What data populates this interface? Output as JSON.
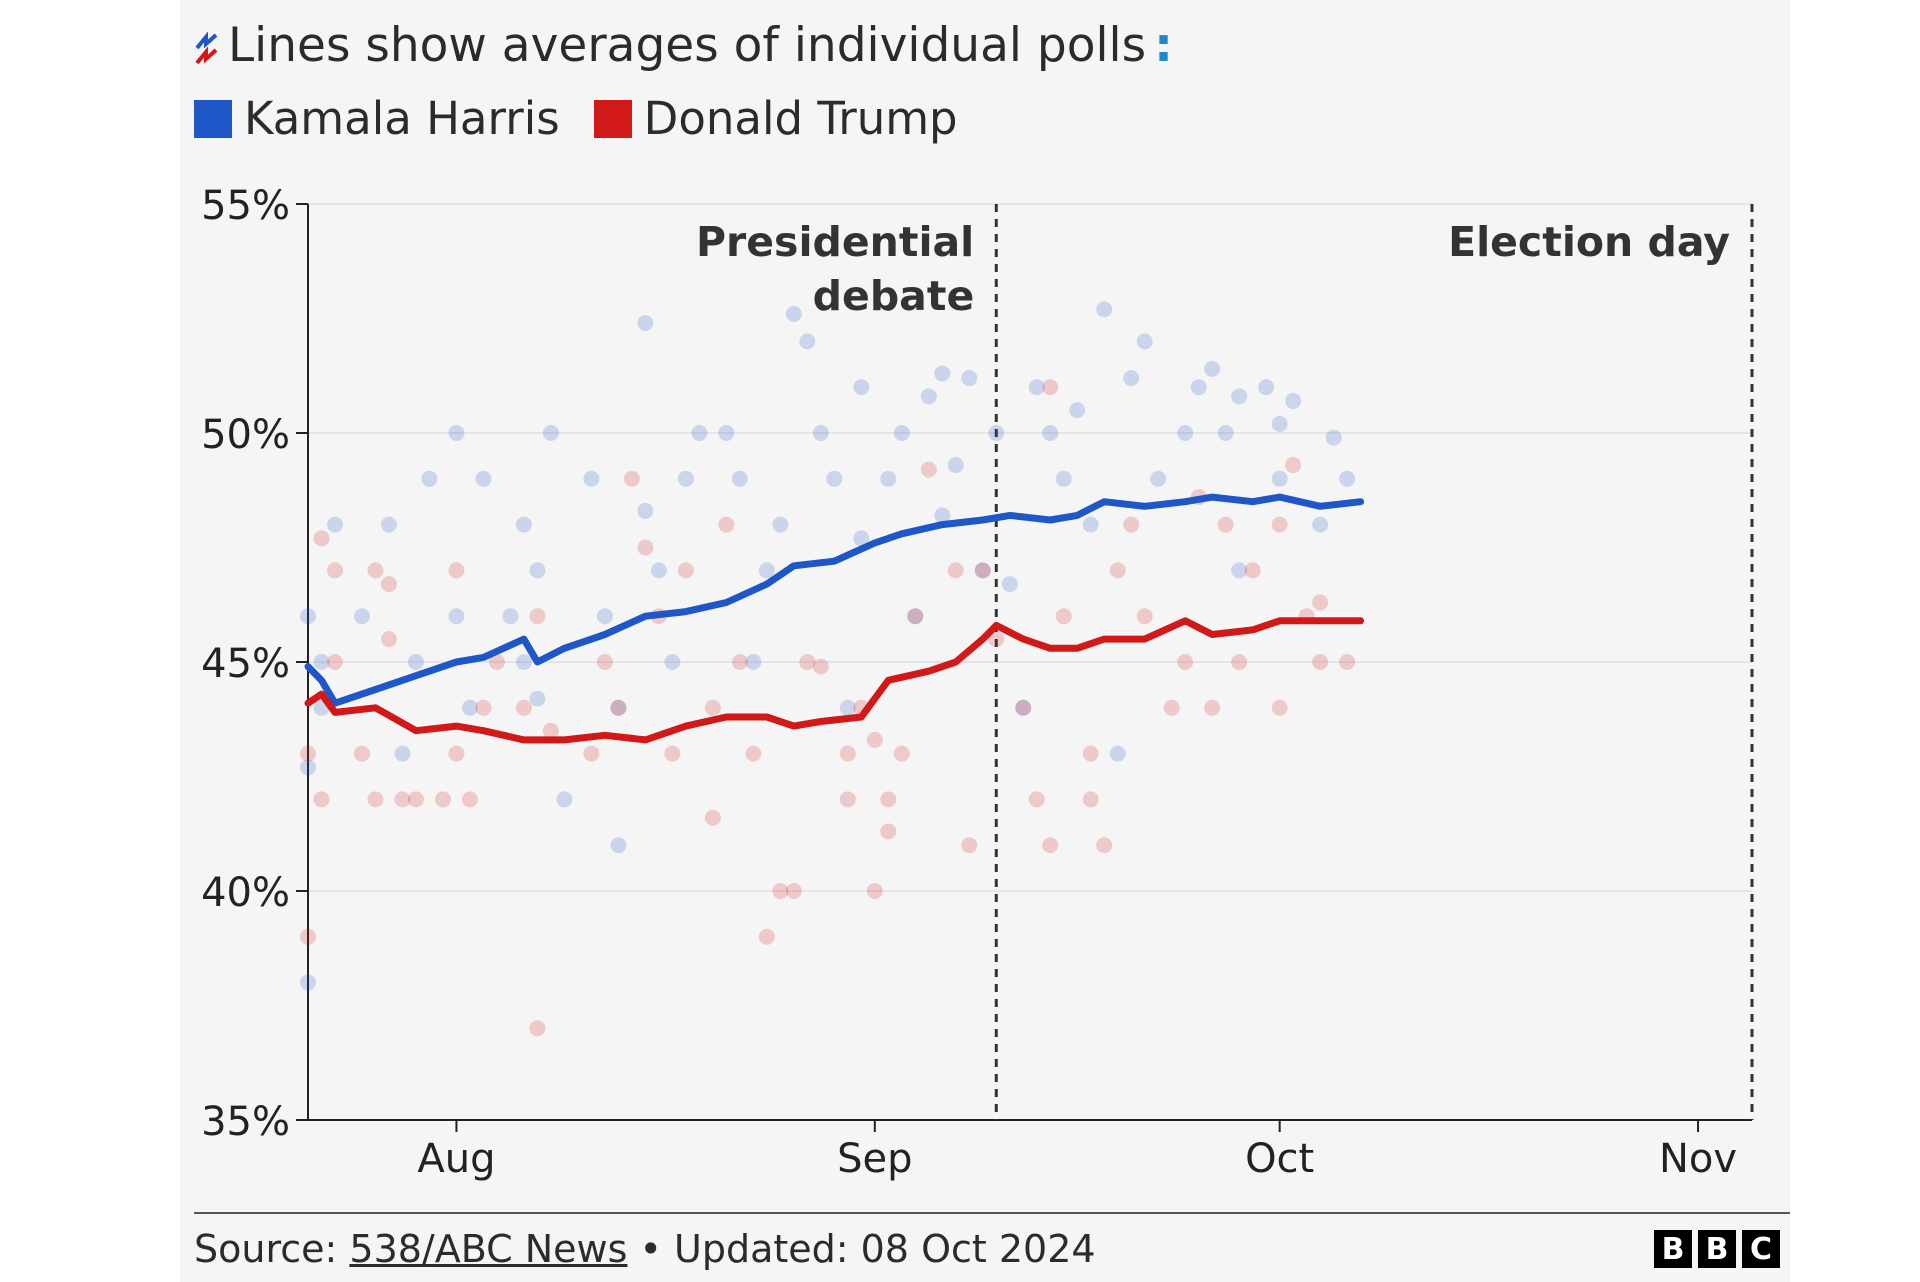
{
  "header": {
    "title": "Lines show averages of individual polls",
    "title_suffix": ":",
    "legend": [
      {
        "label": "Kamala Harris",
        "color": "#1f57c8"
      },
      {
        "label": "Donald Trump",
        "color": "#d11919"
      }
    ]
  },
  "annotations": {
    "debate_line1": "Presidential",
    "debate_line2": "debate",
    "election": "Election day"
  },
  "footer": {
    "source_label": "Source: ",
    "source_name": "538/ABC News",
    "updated": " • Updated: 08 Oct 2024",
    "logo": [
      "B",
      "B",
      "C"
    ]
  },
  "chart_data": {
    "type": "line",
    "xlabel": "",
    "ylabel": "",
    "x_range": [
      "2024-07-21",
      "2024-11-05"
    ],
    "ylim": [
      35,
      55
    ],
    "y_ticks": [
      35,
      40,
      45,
      50,
      55
    ],
    "y_tick_labels": [
      "35%",
      "40%",
      "45%",
      "50%",
      "55%"
    ],
    "x_ticks": [
      {
        "label": "Aug",
        "date": "2024-08-01"
      },
      {
        "label": "Sep",
        "date": "2024-09-01"
      },
      {
        "label": "Oct",
        "date": "2024-10-01"
      },
      {
        "label": "Nov",
        "date": "2024-11-01"
      }
    ],
    "vlines": [
      {
        "key": "debate",
        "date": "2024-09-10"
      },
      {
        "key": "election",
        "date": "2024-11-05"
      }
    ],
    "grid": true,
    "series": [
      {
        "name": "Kamala Harris",
        "color": "#1f57c8",
        "average": [
          [
            "2024-07-21",
            44.9
          ],
          [
            "2024-07-22",
            44.6
          ],
          [
            "2024-07-23",
            44.1
          ],
          [
            "2024-07-26",
            44.4
          ],
          [
            "2024-07-29",
            44.7
          ],
          [
            "2024-08-01",
            45.0
          ],
          [
            "2024-08-03",
            45.1
          ],
          [
            "2024-08-06",
            45.5
          ],
          [
            "2024-08-07",
            45.0
          ],
          [
            "2024-08-09",
            45.3
          ],
          [
            "2024-08-12",
            45.6
          ],
          [
            "2024-08-15",
            46.0
          ],
          [
            "2024-08-18",
            46.1
          ],
          [
            "2024-08-21",
            46.3
          ],
          [
            "2024-08-24",
            46.7
          ],
          [
            "2024-08-26",
            47.1
          ],
          [
            "2024-08-29",
            47.2
          ],
          [
            "2024-09-01",
            47.6
          ],
          [
            "2024-09-03",
            47.8
          ],
          [
            "2024-09-06",
            48.0
          ],
          [
            "2024-09-09",
            48.1
          ],
          [
            "2024-09-11",
            48.2
          ],
          [
            "2024-09-14",
            48.1
          ],
          [
            "2024-09-16",
            48.2
          ],
          [
            "2024-09-18",
            48.5
          ],
          [
            "2024-09-21",
            48.4
          ],
          [
            "2024-09-24",
            48.5
          ],
          [
            "2024-09-26",
            48.6
          ],
          [
            "2024-09-29",
            48.5
          ],
          [
            "2024-10-01",
            48.6
          ],
          [
            "2024-10-04",
            48.4
          ],
          [
            "2024-10-07",
            48.5
          ]
        ],
        "polls": [
          [
            "2024-07-21",
            46
          ],
          [
            "2024-07-22",
            45
          ],
          [
            "2024-07-22",
            44
          ],
          [
            "2024-07-23",
            48
          ],
          [
            "2024-07-21",
            38
          ],
          [
            "2024-07-21",
            42.7
          ],
          [
            "2024-07-25",
            46
          ],
          [
            "2024-07-27",
            48
          ],
          [
            "2024-07-28",
            43
          ],
          [
            "2024-07-29",
            45
          ],
          [
            "2024-07-30",
            49
          ],
          [
            "2024-08-01",
            50
          ],
          [
            "2024-08-01",
            46
          ],
          [
            "2024-08-02",
            44
          ],
          [
            "2024-08-03",
            49
          ],
          [
            "2024-08-05",
            46
          ],
          [
            "2024-08-06",
            48
          ],
          [
            "2024-08-06",
            45
          ],
          [
            "2024-08-07",
            47
          ],
          [
            "2024-08-07",
            44.2
          ],
          [
            "2024-08-08",
            50
          ],
          [
            "2024-08-09",
            42
          ],
          [
            "2024-08-11",
            49
          ],
          [
            "2024-08-12",
            46
          ],
          [
            "2024-08-13",
            44
          ],
          [
            "2024-08-13",
            41
          ],
          [
            "2024-08-15",
            48.3
          ],
          [
            "2024-08-15",
            52.4
          ],
          [
            "2024-08-16",
            47
          ],
          [
            "2024-08-17",
            45
          ],
          [
            "2024-08-18",
            49
          ],
          [
            "2024-08-19",
            50
          ],
          [
            "2024-08-21",
            50
          ],
          [
            "2024-08-22",
            49
          ],
          [
            "2024-08-23",
            45
          ],
          [
            "2024-08-24",
            47
          ],
          [
            "2024-08-25",
            48
          ],
          [
            "2024-08-26",
            52.6
          ],
          [
            "2024-08-27",
            52
          ],
          [
            "2024-08-28",
            50
          ],
          [
            "2024-08-29",
            49
          ],
          [
            "2024-08-30",
            44
          ],
          [
            "2024-08-31",
            51
          ],
          [
            "2024-08-31",
            47.7
          ],
          [
            "2024-09-02",
            49
          ],
          [
            "2024-09-03",
            50
          ],
          [
            "2024-09-04",
            46
          ],
          [
            "2024-09-05",
            50.8
          ],
          [
            "2024-09-06",
            51.3
          ],
          [
            "2024-09-06",
            48.2
          ],
          [
            "2024-09-07",
            49.3
          ],
          [
            "2024-09-08",
            51.2
          ],
          [
            "2024-09-09",
            47
          ],
          [
            "2024-09-10",
            50
          ],
          [
            "2024-09-11",
            46.7
          ],
          [
            "2024-09-12",
            44
          ],
          [
            "2024-09-13",
            51
          ],
          [
            "2024-09-14",
            50
          ],
          [
            "2024-09-15",
            49
          ],
          [
            "2024-09-16",
            50.5
          ],
          [
            "2024-09-17",
            48
          ],
          [
            "2024-09-18",
            52.7
          ],
          [
            "2024-09-19",
            43
          ],
          [
            "2024-09-20",
            51.2
          ],
          [
            "2024-09-21",
            52
          ],
          [
            "2024-09-22",
            49
          ],
          [
            "2024-09-24",
            50
          ],
          [
            "2024-09-25",
            51
          ],
          [
            "2024-09-26",
            51.4
          ],
          [
            "2024-09-27",
            50
          ],
          [
            "2024-09-28",
            50.8
          ],
          [
            "2024-09-28",
            47
          ],
          [
            "2024-09-30",
            51
          ],
          [
            "2024-10-01",
            50.2
          ],
          [
            "2024-10-01",
            49
          ],
          [
            "2024-10-02",
            50.7
          ],
          [
            "2024-10-04",
            48
          ],
          [
            "2024-10-05",
            49.9
          ],
          [
            "2024-10-06",
            49
          ]
        ]
      },
      {
        "name": "Donald Trump",
        "color": "#d11919",
        "average": [
          [
            "2024-07-21",
            44.1
          ],
          [
            "2024-07-22",
            44.3
          ],
          [
            "2024-07-23",
            43.9
          ],
          [
            "2024-07-26",
            44.0
          ],
          [
            "2024-07-29",
            43.5
          ],
          [
            "2024-08-01",
            43.6
          ],
          [
            "2024-08-03",
            43.5
          ],
          [
            "2024-08-06",
            43.3
          ],
          [
            "2024-08-09",
            43.3
          ],
          [
            "2024-08-12",
            43.4
          ],
          [
            "2024-08-15",
            43.3
          ],
          [
            "2024-08-18",
            43.6
          ],
          [
            "2024-08-21",
            43.8
          ],
          [
            "2024-08-24",
            43.8
          ],
          [
            "2024-08-26",
            43.6
          ],
          [
            "2024-08-28",
            43.7
          ],
          [
            "2024-08-31",
            43.8
          ],
          [
            "2024-09-02",
            44.6
          ],
          [
            "2024-09-05",
            44.8
          ],
          [
            "2024-09-07",
            45.0
          ],
          [
            "2024-09-09",
            45.5
          ],
          [
            "2024-09-10",
            45.8
          ],
          [
            "2024-09-12",
            45.5
          ],
          [
            "2024-09-14",
            45.3
          ],
          [
            "2024-09-16",
            45.3
          ],
          [
            "2024-09-18",
            45.5
          ],
          [
            "2024-09-21",
            45.5
          ],
          [
            "2024-09-24",
            45.9
          ],
          [
            "2024-09-26",
            45.6
          ],
          [
            "2024-09-29",
            45.7
          ],
          [
            "2024-10-01",
            45.9
          ],
          [
            "2024-10-03",
            45.9
          ],
          [
            "2024-10-07",
            45.9
          ]
        ],
        "polls": [
          [
            "2024-07-21",
            43
          ],
          [
            "2024-07-21",
            39
          ],
          [
            "2024-07-22",
            47.7
          ],
          [
            "2024-07-22",
            42
          ],
          [
            "2024-07-23",
            45
          ],
          [
            "2024-07-23",
            47
          ],
          [
            "2024-07-25",
            43
          ],
          [
            "2024-07-26",
            47
          ],
          [
            "2024-07-26",
            42
          ],
          [
            "2024-07-27",
            46.7
          ],
          [
            "2024-07-27",
            45.5
          ],
          [
            "2024-07-28",
            42
          ],
          [
            "2024-07-29",
            42
          ],
          [
            "2024-07-31",
            42
          ],
          [
            "2024-08-01",
            43
          ],
          [
            "2024-08-01",
            47
          ],
          [
            "2024-08-02",
            42
          ],
          [
            "2024-08-03",
            44
          ],
          [
            "2024-08-04",
            45
          ],
          [
            "2024-08-06",
            44
          ],
          [
            "2024-08-07",
            37
          ],
          [
            "2024-08-07",
            46
          ],
          [
            "2024-08-08",
            43.5
          ],
          [
            "2024-08-11",
            43
          ],
          [
            "2024-08-12",
            45
          ],
          [
            "2024-08-13",
            44
          ],
          [
            "2024-08-14",
            49
          ],
          [
            "2024-08-15",
            47.5
          ],
          [
            "2024-08-16",
            46
          ],
          [
            "2024-08-17",
            43
          ],
          [
            "2024-08-18",
            47
          ],
          [
            "2024-08-20",
            44
          ],
          [
            "2024-08-20",
            41.6
          ],
          [
            "2024-08-21",
            48
          ],
          [
            "2024-08-22",
            45
          ],
          [
            "2024-08-23",
            43
          ],
          [
            "2024-08-24",
            39
          ],
          [
            "2024-08-25",
            40
          ],
          [
            "2024-08-26",
            40
          ],
          [
            "2024-08-27",
            45
          ],
          [
            "2024-08-28",
            44.9
          ],
          [
            "2024-08-30",
            43
          ],
          [
            "2024-08-30",
            42
          ],
          [
            "2024-08-31",
            44
          ],
          [
            "2024-09-01",
            43.3
          ],
          [
            "2024-09-01",
            40
          ],
          [
            "2024-09-02",
            41.3
          ],
          [
            "2024-09-02",
            42
          ],
          [
            "2024-09-03",
            43
          ],
          [
            "2024-09-04",
            46
          ],
          [
            "2024-09-05",
            49.2
          ],
          [
            "2024-09-07",
            47
          ],
          [
            "2024-09-08",
            41
          ],
          [
            "2024-09-09",
            47
          ],
          [
            "2024-09-10",
            45.5
          ],
          [
            "2024-09-12",
            44
          ],
          [
            "2024-09-13",
            42
          ],
          [
            "2024-09-14",
            51
          ],
          [
            "2024-09-14",
            41
          ],
          [
            "2024-09-15",
            46
          ],
          [
            "2024-09-17",
            43
          ],
          [
            "2024-09-17",
            42
          ],
          [
            "2024-09-18",
            41
          ],
          [
            "2024-09-19",
            47
          ],
          [
            "2024-09-20",
            48
          ],
          [
            "2024-09-21",
            46
          ],
          [
            "2024-09-23",
            44
          ],
          [
            "2024-09-24",
            45
          ],
          [
            "2024-09-25",
            48.6
          ],
          [
            "2024-09-26",
            44
          ],
          [
            "2024-09-27",
            48
          ],
          [
            "2024-09-28",
            45
          ],
          [
            "2024-09-29",
            47
          ],
          [
            "2024-10-01",
            48
          ],
          [
            "2024-10-01",
            44
          ],
          [
            "2024-10-02",
            49.3
          ],
          [
            "2024-10-03",
            46
          ],
          [
            "2024-10-04",
            45
          ],
          [
            "2024-10-04",
            46.3
          ],
          [
            "2024-10-06",
            45
          ]
        ]
      }
    ]
  }
}
